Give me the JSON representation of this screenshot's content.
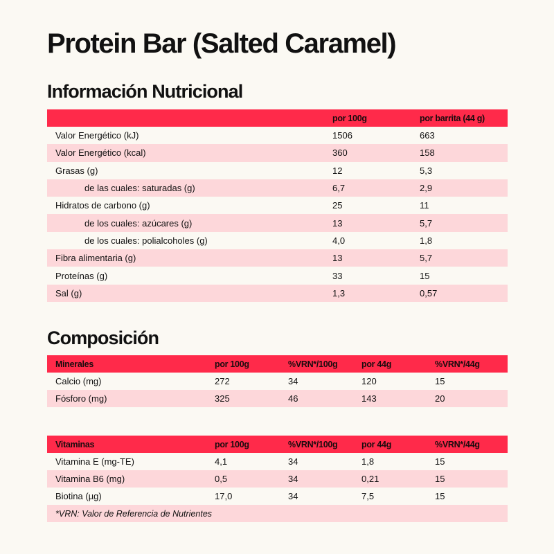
{
  "title": "Protein Bar (Salted Caramel)",
  "nutrition": {
    "heading": "Información Nutricional",
    "columns": [
      "",
      "por 100g",
      "por barrita (44 g)"
    ],
    "rows": [
      {
        "label": "Valor Energético (kJ)",
        "per100g": "1506",
        "perBar": "663"
      },
      {
        "label": "Valor Energético (kcal)",
        "per100g": "360",
        "perBar": "158"
      },
      {
        "label": "Grasas (g)",
        "per100g": "12",
        "perBar": "5,3"
      },
      {
        "label": "de las cuales: saturadas (g)",
        "per100g": "6,7",
        "perBar": "2,9"
      },
      {
        "label": "Hidratos de carbono (g)",
        "per100g": "25",
        "perBar": "11"
      },
      {
        "label": "de los cuales: azúcares (g)",
        "per100g": "13",
        "perBar": "5,7"
      },
      {
        "label": "de los cuales: polialcoholes (g)",
        "per100g": "4,0",
        "perBar": "1,8"
      },
      {
        "label": "Fibra alimentaria (g)",
        "per100g": "13",
        "perBar": "5,7"
      },
      {
        "label": "Proteínas (g)",
        "per100g": "33",
        "perBar": "15"
      },
      {
        "label": "Sal (g)",
        "per100g": "1,3",
        "perBar": "0,57"
      }
    ]
  },
  "composition": {
    "heading": "Composición",
    "minerals": {
      "columns": [
        "Minerales",
        "por 100g",
        "%VRN*/100g",
        "por 44g",
        "%VRN*/44g"
      ],
      "rows": [
        [
          "Calcio (mg)",
          "272",
          "34",
          "120",
          "15"
        ],
        [
          "Fósforo (mg)",
          "325",
          "46",
          "143",
          "20"
        ]
      ]
    },
    "vitamins": {
      "columns": [
        "Vitaminas",
        "por 100g",
        "%VRN*/100g",
        "por 44g",
        "%VRN*/44g"
      ],
      "rows": [
        [
          "Vitamina E (mg-TE)",
          "4,1",
          "34",
          "1,8",
          "15"
        ],
        [
          "Vitamina B6 (mg)",
          "0,5",
          "34",
          "0,21",
          "15"
        ],
        [
          "Biotina (µg)",
          "17,0",
          "34",
          "7,5",
          "15"
        ]
      ],
      "footnote": "*VRN: Valor de Referencia de Nutrientes"
    }
  }
}
